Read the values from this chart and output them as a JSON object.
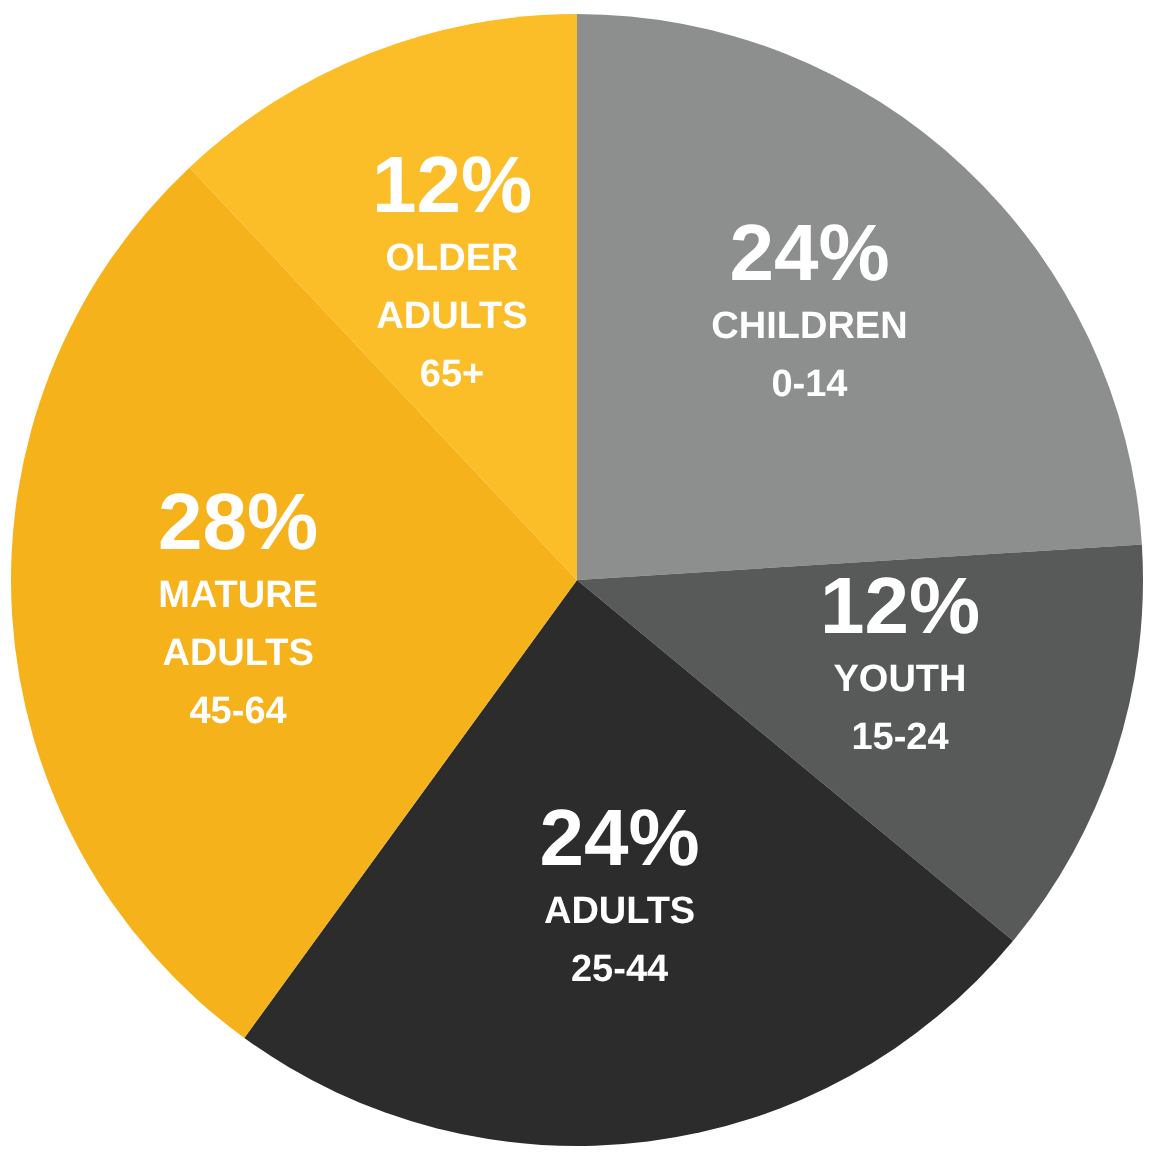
{
  "chart_data": {
    "type": "pie",
    "categories": [
      "CHILDREN\n0-14",
      "YOUTH\n15-24",
      "ADULTS\n25-44",
      "MATURE\nADULTS\n45-64",
      "OLDER\nADULTS\n65+"
    ],
    "values": [
      24,
      12,
      24,
      28,
      12
    ],
    "value_labels": [
      "24%",
      "12%",
      "24%",
      "28%",
      "12%"
    ],
    "colors": [
      "#8d8f8e",
      "#585a59",
      "#2c2c2c",
      "#f6b21b",
      "#fbbd28"
    ],
    "legend": false
  }
}
